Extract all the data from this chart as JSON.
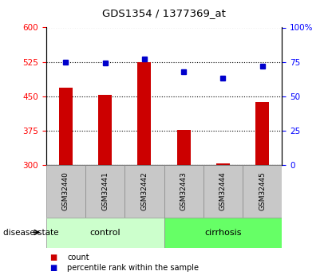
{
  "title": "GDS1354 / 1377369_at",
  "samples": [
    "GSM32440",
    "GSM32441",
    "GSM32442",
    "GSM32443",
    "GSM32444",
    "GSM32445"
  ],
  "counts": [
    468,
    453,
    525,
    376,
    303,
    438
  ],
  "percentile_ranks": [
    75,
    74,
    77,
    68,
    63,
    72
  ],
  "groups": [
    "control",
    "control",
    "control",
    "cirrhosis",
    "cirrhosis",
    "cirrhosis"
  ],
  "ylim_left": [
    300,
    600
  ],
  "ylim_right": [
    0,
    100
  ],
  "yticks_left": [
    300,
    375,
    450,
    525,
    600
  ],
  "yticks_right": [
    0,
    25,
    50,
    75,
    100
  ],
  "bar_color": "#cc0000",
  "dot_color": "#0000cc",
  "control_color": "#ccffcc",
  "cirrhosis_color": "#66ff66",
  "label_bar": "count",
  "label_dot": "percentile rank within the sample",
  "group_label": "disease state",
  "bar_width": 0.35
}
